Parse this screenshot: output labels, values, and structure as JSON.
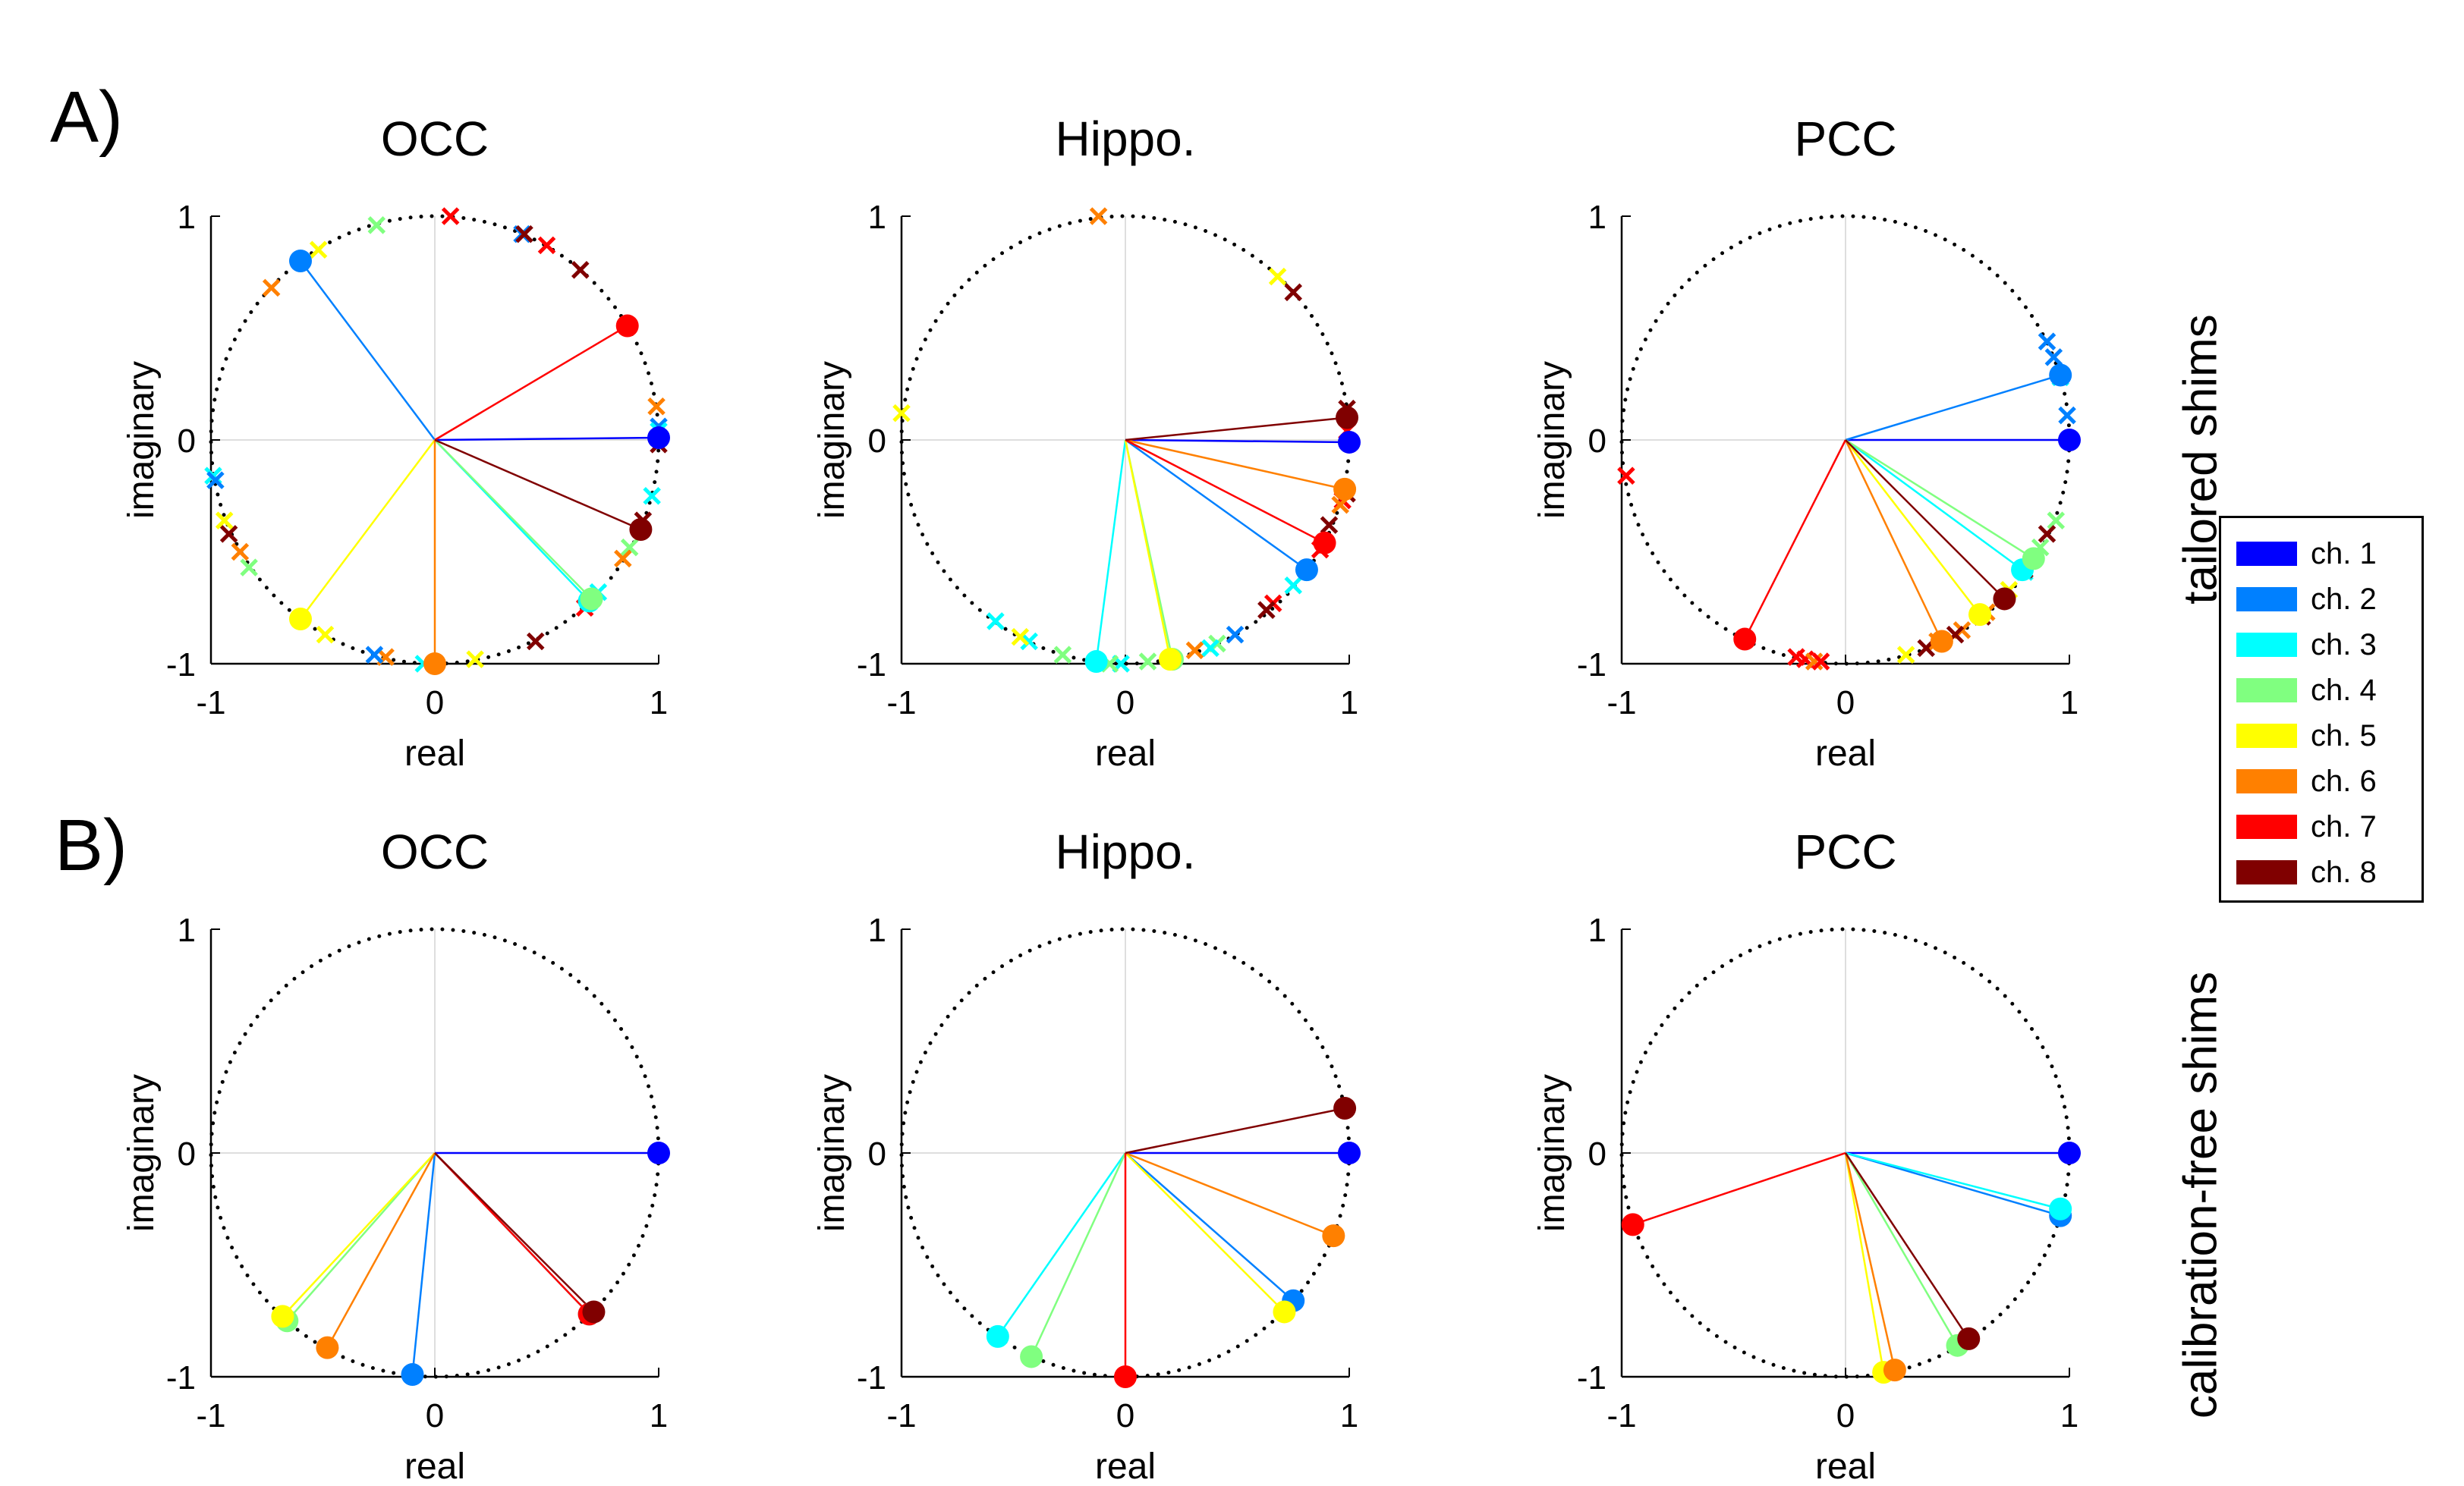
{
  "panel_labels": [
    "A)",
    "B)"
  ],
  "row_labels": [
    "tailored shims",
    "calibration-free shims"
  ],
  "legend": [
    {
      "label": "ch. 1",
      "color": "#0000ff"
    },
    {
      "label": "ch. 2",
      "color": "#0080ff"
    },
    {
      "label": "ch. 3",
      "color": "#00ffff"
    },
    {
      "label": "ch. 4",
      "color": "#80ff80"
    },
    {
      "label": "ch. 5",
      "color": "#ffff00"
    },
    {
      "label": "ch. 6",
      "color": "#ff8000"
    },
    {
      "label": "ch. 7",
      "color": "#ff0000"
    },
    {
      "label": "ch. 8",
      "color": "#800000"
    }
  ],
  "chart_data": [
    {
      "type": "scatter",
      "title": "OCC",
      "row": "tailored shims",
      "xlabel": "real",
      "ylabel": "imaginary",
      "xlim": [
        -1,
        1
      ],
      "ylim": [
        -1,
        1
      ],
      "xticks": [
        "-1",
        "0",
        "1"
      ],
      "yticks": [
        "-1",
        "0",
        "1"
      ],
      "series": [
        {
          "name": "ch. 1",
          "x": 1.0,
          "y": 0.01
        },
        {
          "name": "ch. 2",
          "x": -0.6,
          "y": 0.8
        },
        {
          "name": "ch. 3",
          "x": 0.69,
          "y": -0.72
        },
        {
          "name": "ch. 4",
          "x": 0.7,
          "y": -0.71
        },
        {
          "name": "ch. 5",
          "x": -0.6,
          "y": -0.8
        },
        {
          "name": "ch. 6",
          "x": 0.0,
          "y": -1.0
        },
        {
          "name": "ch. 7",
          "x": 0.86,
          "y": 0.51
        },
        {
          "name": "ch. 8",
          "x": 0.92,
          "y": -0.4
        }
      ],
      "x_markers": [
        {
          "name": "ch. 7",
          "x": 0.07,
          "y": 1.0
        },
        {
          "name": "ch. 4",
          "x": -0.26,
          "y": 0.96
        },
        {
          "name": "ch. 5",
          "x": -0.52,
          "y": 0.85
        },
        {
          "name": "ch. 6",
          "x": -0.73,
          "y": 0.68
        },
        {
          "name": "ch. 2",
          "x": 0.39,
          "y": 0.92
        },
        {
          "name": "ch. 8",
          "x": 0.4,
          "y": 0.92
        },
        {
          "name": "ch. 7",
          "x": 0.5,
          "y": 0.87
        },
        {
          "name": "ch. 8",
          "x": 0.65,
          "y": 0.76
        },
        {
          "name": "ch. 6",
          "x": 0.99,
          "y": 0.15
        },
        {
          "name": "ch. 2",
          "x": 1.0,
          "y": 0.06
        },
        {
          "name": "ch. 3",
          "x": 1.0,
          "y": 0.04
        },
        {
          "name": "ch. 8",
          "x": 1.0,
          "y": -0.02
        },
        {
          "name": "ch. 3",
          "x": 0.97,
          "y": -0.25
        },
        {
          "name": "ch. 8",
          "x": 0.93,
          "y": -0.36
        },
        {
          "name": "ch. 4",
          "x": 0.87,
          "y": -0.48
        },
        {
          "name": "ch. 6",
          "x": 0.84,
          "y": -0.53
        },
        {
          "name": "ch. 3",
          "x": 0.73,
          "y": -0.68
        },
        {
          "name": "ch. 7",
          "x": 0.67,
          "y": -0.75
        },
        {
          "name": "ch. 8",
          "x": 0.45,
          "y": -0.9
        },
        {
          "name": "ch. 5",
          "x": 0.18,
          "y": -0.98
        },
        {
          "name": "ch. 3",
          "x": -0.05,
          "y": -1.0
        },
        {
          "name": "ch. 6",
          "x": -0.22,
          "y": -0.97
        },
        {
          "name": "ch. 2",
          "x": -0.27,
          "y": -0.96
        },
        {
          "name": "ch. 5",
          "x": -0.49,
          "y": -0.87
        },
        {
          "name": "ch. 4",
          "x": -0.83,
          "y": -0.57
        },
        {
          "name": "ch. 6",
          "x": -0.87,
          "y": -0.5
        },
        {
          "name": "ch. 8",
          "x": -0.92,
          "y": -0.42
        },
        {
          "name": "ch. 5",
          "x": -0.94,
          "y": -0.36
        },
        {
          "name": "ch. 3",
          "x": -0.99,
          "y": -0.16
        },
        {
          "name": "ch. 2",
          "x": -0.98,
          "y": -0.18
        }
      ]
    },
    {
      "type": "scatter",
      "title": "Hippo.",
      "row": "tailored shims",
      "xlabel": "real",
      "ylabel": "imaginary",
      "xlim": [
        -1,
        1
      ],
      "ylim": [
        -1,
        1
      ],
      "xticks": [
        "-1",
        "0",
        "1"
      ],
      "yticks": [
        "-1",
        "0",
        "1"
      ],
      "series": [
        {
          "name": "ch. 1",
          "x": 1.0,
          "y": -0.01
        },
        {
          "name": "ch. 2",
          "x": 0.81,
          "y": -0.58
        },
        {
          "name": "ch. 3",
          "x": -0.13,
          "y": -0.99
        },
        {
          "name": "ch. 4",
          "x": 0.21,
          "y": -0.98
        },
        {
          "name": "ch. 5",
          "x": 0.2,
          "y": -0.98
        },
        {
          "name": "ch. 6",
          "x": 0.98,
          "y": -0.22
        },
        {
          "name": "ch. 7",
          "x": 0.89,
          "y": -0.46
        },
        {
          "name": "ch. 8",
          "x": 0.99,
          "y": 0.1
        }
      ],
      "x_markers": [
        {
          "name": "ch. 6",
          "x": -0.12,
          "y": 1.0
        },
        {
          "name": "ch. 5",
          "x": 0.68,
          "y": 0.73
        },
        {
          "name": "ch. 8",
          "x": 0.75,
          "y": 0.66
        },
        {
          "name": "ch. 5",
          "x": -1.0,
          "y": 0.12
        },
        {
          "name": "ch. 8",
          "x": 0.99,
          "y": 0.14
        },
        {
          "name": "ch. 7",
          "x": 0.99,
          "y": 0.04
        },
        {
          "name": "ch. 8",
          "x": 0.99,
          "y": -0.24
        },
        {
          "name": "ch. 7",
          "x": 0.97,
          "y": -0.27
        },
        {
          "name": "ch. 6",
          "x": 0.96,
          "y": -0.29
        },
        {
          "name": "ch. 8",
          "x": 0.91,
          "y": -0.38
        },
        {
          "name": "ch. 7",
          "x": 0.87,
          "y": -0.49
        },
        {
          "name": "ch. 3",
          "x": 0.75,
          "y": -0.65
        },
        {
          "name": "ch. 7",
          "x": 0.66,
          "y": -0.73
        },
        {
          "name": "ch. 8",
          "x": 0.63,
          "y": -0.76
        },
        {
          "name": "ch. 2",
          "x": 0.49,
          "y": -0.87
        },
        {
          "name": "ch. 4",
          "x": 0.41,
          "y": -0.91
        },
        {
          "name": "ch. 3",
          "x": 0.38,
          "y": -0.93
        },
        {
          "name": "ch. 6",
          "x": 0.31,
          "y": -0.94
        },
        {
          "name": "ch. 4",
          "x": 0.1,
          "y": -0.99
        },
        {
          "name": "ch. 3",
          "x": -0.02,
          "y": -1.0
        },
        {
          "name": "ch. 4",
          "x": -0.07,
          "y": -1.0
        },
        {
          "name": "ch. 4",
          "x": -0.28,
          "y": -0.96
        },
        {
          "name": "ch. 3",
          "x": -0.43,
          "y": -0.9
        },
        {
          "name": "ch. 5",
          "x": -0.47,
          "y": -0.88
        },
        {
          "name": "ch. 3",
          "x": -0.58,
          "y": -0.81
        }
      ]
    },
    {
      "type": "scatter",
      "title": "PCC",
      "row": "tailored shims",
      "xlabel": "real",
      "ylabel": "imaginary",
      "xlim": [
        -1,
        1
      ],
      "ylim": [
        -1,
        1
      ],
      "xticks": [
        "-1",
        "0",
        "1"
      ],
      "yticks": [
        "-1",
        "0",
        "1"
      ],
      "series": [
        {
          "name": "ch. 1",
          "x": 1.0,
          "y": 0.0
        },
        {
          "name": "ch. 2",
          "x": 0.96,
          "y": 0.29
        },
        {
          "name": "ch. 3",
          "x": 0.79,
          "y": -0.58
        },
        {
          "name": "ch. 4",
          "x": 0.84,
          "y": -0.53
        },
        {
          "name": "ch. 5",
          "x": 0.6,
          "y": -0.78
        },
        {
          "name": "ch. 6",
          "x": 0.43,
          "y": -0.9
        },
        {
          "name": "ch. 7",
          "x": -0.45,
          "y": -0.89
        },
        {
          "name": "ch. 8",
          "x": 0.71,
          "y": -0.71
        }
      ],
      "x_markers": [
        {
          "name": "ch. 2",
          "x": 0.9,
          "y": 0.44
        },
        {
          "name": "ch. 2",
          "x": 0.93,
          "y": 0.37
        },
        {
          "name": "ch. 3",
          "x": 0.96,
          "y": 0.28
        },
        {
          "name": "ch. 2",
          "x": 0.99,
          "y": 0.11
        },
        {
          "name": "ch. 7",
          "x": -0.98,
          "y": -0.16
        },
        {
          "name": "ch. 4",
          "x": 0.94,
          "y": -0.36
        },
        {
          "name": "ch. 8",
          "x": 0.9,
          "y": -0.42
        },
        {
          "name": "ch. 4",
          "x": 0.87,
          "y": -0.48
        },
        {
          "name": "ch. 3",
          "x": 0.8,
          "y": -0.59
        },
        {
          "name": "ch. 8",
          "x": 0.8,
          "y": -0.58
        },
        {
          "name": "ch. 5",
          "x": 0.73,
          "y": -0.67
        },
        {
          "name": "ch. 6",
          "x": 0.63,
          "y": -0.77
        },
        {
          "name": "ch. 8",
          "x": 0.61,
          "y": -0.79
        },
        {
          "name": "ch. 6",
          "x": 0.52,
          "y": -0.85
        },
        {
          "name": "ch. 8",
          "x": 0.49,
          "y": -0.87
        },
        {
          "name": "ch. 6",
          "x": 0.41,
          "y": -0.9
        },
        {
          "name": "ch. 8",
          "x": 0.36,
          "y": -0.93
        },
        {
          "name": "ch. 5",
          "x": 0.27,
          "y": -0.96
        },
        {
          "name": "ch. 7",
          "x": -0.22,
          "y": -0.97
        },
        {
          "name": "ch. 7",
          "x": -0.18,
          "y": -0.98
        },
        {
          "name": "ch. 6",
          "x": -0.14,
          "y": -0.99
        },
        {
          "name": "ch. 7",
          "x": -0.11,
          "y": -0.99
        }
      ]
    },
    {
      "type": "scatter",
      "title": "OCC",
      "row": "calibration-free shims",
      "xlabel": "real",
      "ylabel": "imaginary",
      "xlim": [
        -1,
        1
      ],
      "ylim": [
        -1,
        1
      ],
      "xticks": [
        "-1",
        "0",
        "1"
      ],
      "yticks": [
        "-1",
        "0",
        "1"
      ],
      "series": [
        {
          "name": "ch. 1",
          "x": 1.0,
          "y": 0.0
        },
        {
          "name": "ch. 2",
          "x": -0.1,
          "y": -0.99
        },
        {
          "name": "ch. 3",
          "x": 0.69,
          "y": -0.72
        },
        {
          "name": "ch. 4",
          "x": -0.66,
          "y": -0.75
        },
        {
          "name": "ch. 5",
          "x": -0.68,
          "y": -0.73
        },
        {
          "name": "ch. 6",
          "x": -0.48,
          "y": -0.87
        },
        {
          "name": "ch. 7",
          "x": 0.69,
          "y": -0.72
        },
        {
          "name": "ch. 8",
          "x": 0.71,
          "y": -0.71
        }
      ],
      "x_markers": []
    },
    {
      "type": "scatter",
      "title": "Hippo.",
      "row": "calibration-free shims",
      "xlabel": "real",
      "ylabel": "imaginary",
      "xlim": [
        -1,
        1
      ],
      "ylim": [
        -1,
        1
      ],
      "xticks": [
        "-1",
        "0",
        "1"
      ],
      "yticks": [
        "-1",
        "0",
        "1"
      ],
      "series": [
        {
          "name": "ch. 1",
          "x": 1.0,
          "y": 0.0
        },
        {
          "name": "ch. 2",
          "x": 0.75,
          "y": -0.66
        },
        {
          "name": "ch. 3",
          "x": -0.57,
          "y": -0.82
        },
        {
          "name": "ch. 4",
          "x": -0.42,
          "y": -0.91
        },
        {
          "name": "ch. 5",
          "x": 0.71,
          "y": -0.71
        },
        {
          "name": "ch. 6",
          "x": 0.93,
          "y": -0.37
        },
        {
          "name": "ch. 7",
          "x": 0.0,
          "y": -1.0
        },
        {
          "name": "ch. 8",
          "x": 0.98,
          "y": 0.2
        }
      ],
      "x_markers": []
    },
    {
      "type": "scatter",
      "title": "PCC",
      "row": "calibration-free shims",
      "xlabel": "real",
      "ylabel": "imaginary",
      "xlim": [
        -1,
        1
      ],
      "ylim": [
        -1,
        1
      ],
      "xticks": [
        "-1",
        "0",
        "1"
      ],
      "yticks": [
        "-1",
        "0",
        "1"
      ],
      "series": [
        {
          "name": "ch. 1",
          "x": 1.0,
          "y": 0.0
        },
        {
          "name": "ch. 2",
          "x": 0.96,
          "y": -0.28
        },
        {
          "name": "ch. 3",
          "x": 0.96,
          "y": -0.25
        },
        {
          "name": "ch. 4",
          "x": 0.5,
          "y": -0.86
        },
        {
          "name": "ch. 5",
          "x": 0.17,
          "y": -0.98
        },
        {
          "name": "ch. 6",
          "x": 0.22,
          "y": -0.97
        },
        {
          "name": "ch. 7",
          "x": -0.95,
          "y": -0.32
        },
        {
          "name": "ch. 8",
          "x": 0.55,
          "y": -0.83
        }
      ],
      "x_markers": []
    }
  ]
}
